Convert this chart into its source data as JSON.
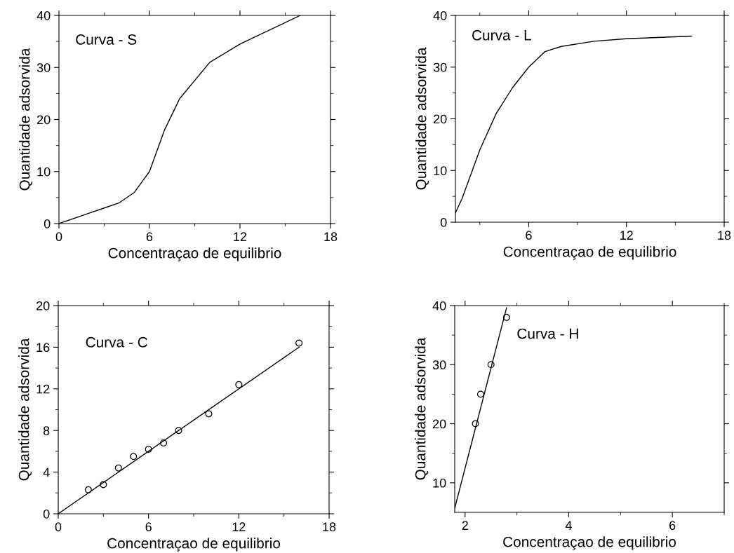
{
  "chart_data": [
    {
      "type": "line",
      "xlabel": "Concentraçao de equilibrio",
      "ylabel": "Quantidade adsorvida",
      "annotations": [
        "Curva - S"
      ],
      "xlim": [
        0,
        18
      ],
      "ylim": [
        0,
        40
      ],
      "grid": false,
      "xticks": [
        0,
        {
          "value": 3,
          "label": null
        },
        6,
        {
          "value": 9,
          "label": null
        },
        12,
        {
          "value": 15,
          "label": null
        },
        18
      ],
      "yticks": [
        0,
        {
          "value": 5,
          "label": null
        },
        10,
        {
          "value": 15,
          "label": null
        },
        20,
        {
          "value": 25,
          "label": null
        },
        30,
        {
          "value": 35,
          "label": null
        },
        40
      ],
      "series": [
        {
          "color": "#000000",
          "x": [
            0,
            2,
            3,
            4,
            5,
            6,
            7,
            8,
            10,
            12,
            16
          ],
          "values": [
            0,
            2,
            3,
            4,
            6,
            10,
            18,
            24,
            31,
            34.5,
            40
          ]
        }
      ]
    },
    {
      "type": "line",
      "xlabel": "Concentraçao de equilibrio",
      "ylabel": "Quantidade adsorvida",
      "annotations": [
        "Curva - L"
      ],
      "xlim": [
        1.5,
        18
      ],
      "ylim": [
        0,
        40
      ],
      "grid": false,
      "xticks": [
        {
          "value": 3,
          "label": null
        },
        6,
        {
          "value": 9,
          "label": null
        },
        12,
        {
          "value": 15,
          "label": null
        },
        18
      ],
      "yticks": [
        0,
        {
          "value": 5,
          "label": null
        },
        10,
        {
          "value": 15,
          "label": null
        },
        20,
        {
          "value": 25,
          "label": null
        },
        30,
        {
          "value": 35,
          "label": null
        },
        40
      ],
      "series": [
        {
          "color": "#000000",
          "x": [
            1.5,
            1.9,
            3,
            4,
            5,
            6,
            7,
            8,
            10,
            12,
            16
          ],
          "values": [
            1.8,
            4.5,
            14,
            21,
            26,
            30,
            33,
            34,
            35,
            35.5,
            36
          ]
        }
      ]
    },
    {
      "type": "scatter",
      "xlabel": "Concentraçao de equilibrio",
      "ylabel": "Quantidade adsorvida",
      "annotations": [
        "Curva - C"
      ],
      "xlim": [
        0,
        18
      ],
      "ylim": [
        0,
        20
      ],
      "grid": false,
      "xticks": [
        0,
        {
          "value": 3,
          "label": null
        },
        6,
        {
          "value": 9,
          "label": null
        },
        12,
        {
          "value": 15,
          "label": null
        },
        18
      ],
      "yticks": [
        0,
        {
          "value": 2,
          "label": null
        },
        4,
        {
          "value": 6,
          "label": null
        },
        8,
        {
          "value": 10,
          "label": null
        },
        12,
        {
          "value": 14,
          "label": null
        },
        16,
        {
          "value": 18,
          "label": null
        },
        20
      ],
      "series": [
        {
          "marker": "circle",
          "color": "#000000",
          "x": [
            2,
            3,
            4,
            5,
            6,
            7,
            8,
            10,
            12,
            16
          ],
          "values": [
            2.3,
            2.8,
            4.4,
            5.5,
            6.2,
            6.8,
            8.0,
            9.6,
            12.4,
            16.4
          ]
        },
        {
          "type": "line",
          "marker": "none",
          "color": "#000000",
          "x": [
            0,
            16
          ],
          "values": [
            0,
            16
          ]
        }
      ]
    },
    {
      "type": "scatter",
      "xlabel": "Concentraçao de equilibrio",
      "ylabel": "Quantidade adsorvida",
      "annotations": [
        "Curva - H"
      ],
      "xlim": [
        1.8,
        7
      ],
      "ylim": [
        5,
        40
      ],
      "grid": false,
      "xticks": [
        2,
        {
          "value": 3,
          "label": null
        },
        4,
        {
          "value": 5,
          "label": null
        },
        6,
        {
          "value": 7,
          "label": null
        }
      ],
      "yticks": [
        10,
        {
          "value": 15,
          "label": null
        },
        20,
        {
          "value": 25,
          "label": null
        },
        30,
        {
          "value": 35,
          "label": null
        },
        40
      ],
      "series": [
        {
          "marker": "circle",
          "color": "#000000",
          "x": [
            2.2,
            2.3,
            2.5,
            2.8
          ],
          "values": [
            20,
            25,
            30,
            38
          ]
        },
        {
          "type": "line",
          "marker": "none",
          "color": "#000000",
          "x": [
            1.8,
            2.8
          ],
          "values": [
            5.7,
            39.6
          ]
        }
      ]
    }
  ]
}
